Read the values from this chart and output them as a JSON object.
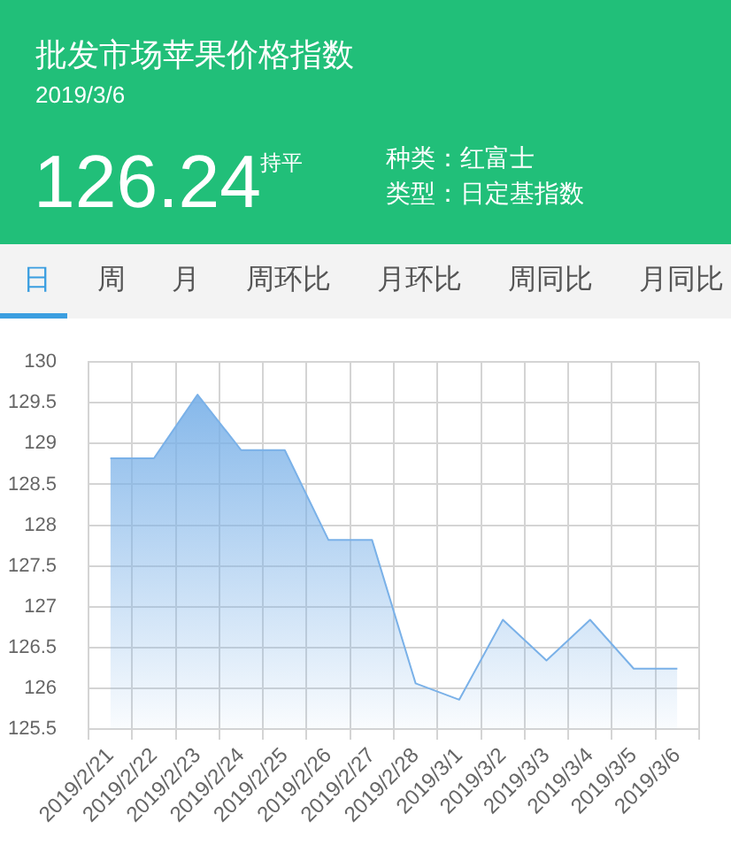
{
  "chart_data": {
    "type": "area",
    "title": "批发市场苹果价格指数",
    "subtitle": "2019/3/6",
    "categories": [
      "2019/2/21",
      "2019/2/22",
      "2019/2/23",
      "2019/2/24",
      "2019/2/25",
      "2019/2/26",
      "2019/2/27",
      "2019/2/28",
      "2019/3/1",
      "2019/3/2",
      "2019/3/3",
      "2019/3/4",
      "2019/3/5",
      "2019/3/6"
    ],
    "series": [
      {
        "color": "#7ab1e8",
        "values": [
          128.82,
          128.82,
          129.6,
          128.92,
          128.92,
          127.82,
          127.82,
          126.06,
          125.86,
          126.84,
          126.34,
          126.84,
          126.24,
          126.24
        ]
      }
    ],
    "ylim": [
      125.5,
      130
    ],
    "yticks": [
      125.5,
      126,
      126.5,
      127,
      127.5,
      128,
      128.5,
      129,
      129.5,
      130
    ],
    "grid": true,
    "annotations": [
      "126.24",
      "持平",
      "种类：红富士",
      "类型：日定基指数",
      "日",
      "周",
      "月",
      "周环比",
      "月环比",
      "周同比",
      "月同比"
    ]
  }
}
